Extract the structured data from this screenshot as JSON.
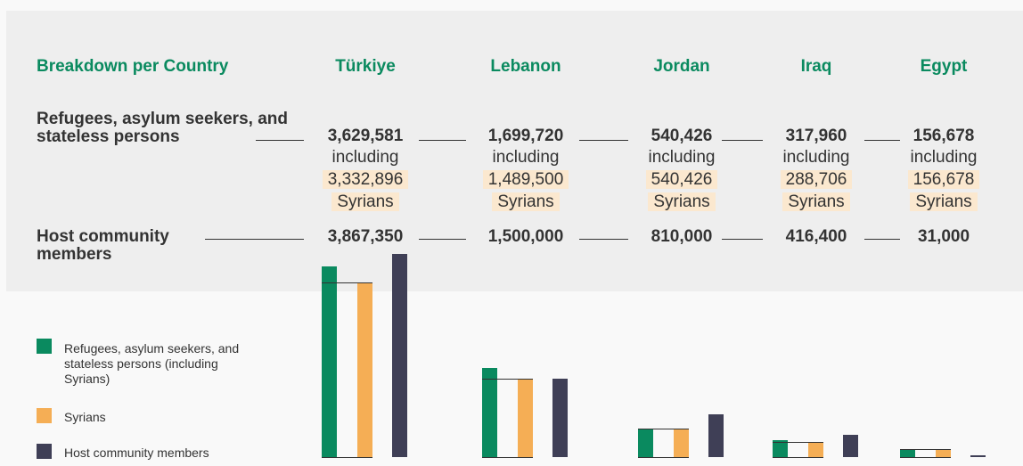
{
  "chart_data": {
    "type": "bar",
    "title": "Breakdown per Country",
    "categories": [
      "Türkiye",
      "Lebanon",
      "Jordan",
      "Iraq",
      "Egypt"
    ],
    "row_labels": [
      "Refugees, asylum seekers, and stateless persons",
      "Host community members"
    ],
    "including_label": "including",
    "syrians_label": "Syrians",
    "series": [
      {
        "name": "Refugees, asylum seekers, and stateless persons (including Syrians)",
        "color": "#0a8a5f",
        "values": [
          3629581,
          1699720,
          540426,
          317960,
          156678
        ],
        "value_labels": [
          "3,629,581",
          "1,699,720",
          "540,426",
          "317,960",
          "156,678"
        ]
      },
      {
        "name": "Syrians",
        "color": "#f5ae55",
        "values": [
          3332896,
          1489500,
          540426,
          288706,
          156678
        ],
        "value_labels": [
          "3,332,896",
          "1,489,500",
          "540,426",
          "288,706",
          "156,678"
        ]
      },
      {
        "name": "Host community members",
        "color": "#3f3f56",
        "values": [
          3867350,
          1500000,
          810000,
          416400,
          31000
        ],
        "value_labels": [
          "3,867,350",
          "1,500,000",
          "810,000",
          "416,400",
          "31,000"
        ]
      }
    ]
  }
}
